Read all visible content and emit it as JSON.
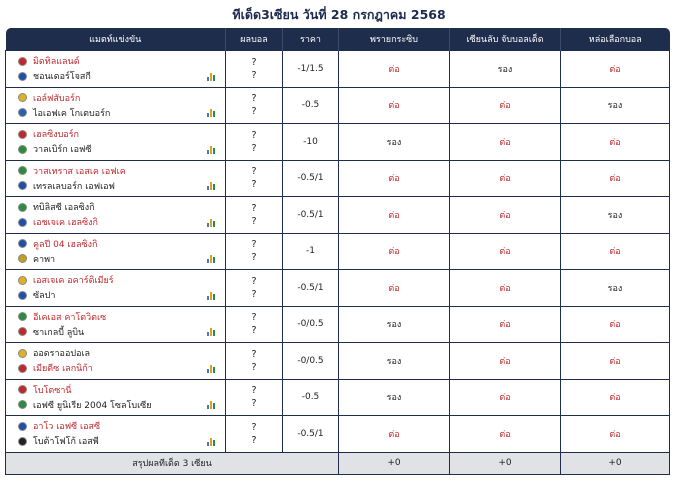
{
  "title": "ทีเด็ด3เซียน วันที่ 28 กรกฎาคม 2568",
  "headers": {
    "match": "แมตท์แข่งขัน",
    "result": "ผลบอล",
    "odds": "ราคา",
    "tipster1": "พรายกระซิบ",
    "tipster2": "เซียนลับ จับบอลเด็ด",
    "tipster3": "หล่อเลือกบอล"
  },
  "colors": {
    "header_bg": "#1f2d4d",
    "fav_text": "#c0282d",
    "footer_bg": "#e1e2e6"
  },
  "rows": [
    {
      "home": "มิดทิลแลนด์",
      "away": "ชอนเดอร์โจสกี",
      "fav": "home",
      "score_home": "?",
      "score_away": "?",
      "odds": "-1/1.5",
      "t1": "ต่อ",
      "t2": "รอง",
      "t3": "ต่อ",
      "home_logo": "#c0282d",
      "away_logo": "#1f4fa8"
    },
    {
      "home": "เอล์ฟสับอร์ก",
      "away": "ไอเอฟเค โกเตบอร์ก",
      "fav": "home",
      "score_home": "?",
      "score_away": "?",
      "odds": "-0.5",
      "t1": "ต่อ",
      "t2": "ต่อ",
      "t3": "รอง",
      "home_logo": "#e0b020",
      "away_logo": "#2a5fb0"
    },
    {
      "home": "เฮลซิงบอร์ก",
      "away": "วาลเบิร์ก เอฟซี",
      "fav": "home",
      "score_home": "?",
      "score_away": "?",
      "odds": "-10",
      "t1": "รอง",
      "t2": "ต่อ",
      "t3": "ต่อ",
      "home_logo": "#c0282d",
      "away_logo": "#2d8a3e"
    },
    {
      "home": "วาสเทราส เอสเค เอฟเค",
      "away": "เทรลเลบอร์ก เอฟเอฟ",
      "fav": "home",
      "score_home": "?",
      "score_away": "?",
      "odds": "-0.5/1",
      "t1": "ต่อ",
      "t2": "ต่อ",
      "t3": "ต่อ",
      "home_logo": "#2d8a3e",
      "away_logo": "#1f4fa8"
    },
    {
      "home": "ทบิลิสซี เอลซิงกิ",
      "away": "เอชเจเค เฮลซิงกิ",
      "fav": "away",
      "score_home": "?",
      "score_away": "?",
      "odds": "-0.5/1",
      "t1": "ต่อ",
      "t2": "ต่อ",
      "t3": "รอง",
      "home_logo": "#2d8a3e",
      "away_logo": "#1f4fa8"
    },
    {
      "home": "คูลปี 04 เฮลซิงกิ",
      "away": "คาพา",
      "fav": "home",
      "score_home": "?",
      "score_away": "?",
      "odds": "-1",
      "t1": "ต่อ",
      "t2": "ต่อ",
      "t3": "ต่อ",
      "home_logo": "#1f4fa8",
      "away_logo": "#c0a020"
    },
    {
      "home": "เอสเจเค อคาร์ดิเมียร์",
      "away": "ซัลปา",
      "fav": "home",
      "score_home": "?",
      "score_away": "?",
      "odds": "-0.5/1",
      "t1": "ต่อ",
      "t2": "ต่อ",
      "t3": "รอง",
      "home_logo": "#e0b020",
      "away_logo": "#1f4fa8"
    },
    {
      "home": "อีเคเอส คาโตวิตเซ",
      "away": "ซาเกลบี้ ลูบิน",
      "fav": "home",
      "score_home": "?",
      "score_away": "?",
      "odds": "-0/0.5",
      "t1": "รอง",
      "t2": "ต่อ",
      "t3": "ต่อ",
      "home_logo": "#2d8a3e",
      "away_logo": "#c0282d"
    },
    {
      "home": "ออดราออปอเล",
      "away": "เมียดีซ เลกนิก้า",
      "fav": "away",
      "score_home": "?",
      "score_away": "?",
      "odds": "-0/0.5",
      "t1": "รอง",
      "t2": "ต่อ",
      "t3": "ต่อ",
      "home_logo": "#e0b020",
      "away_logo": "#c0282d"
    },
    {
      "home": "โบโตซานี่",
      "away": "เอฟซี ยูนิเรีย 2004 โซลโบเซีย",
      "fav": "home",
      "score_home": "?",
      "score_away": "?",
      "odds": "-0.5",
      "t1": "รอง",
      "t2": "ต่อ",
      "t3": "ต่อ",
      "home_logo": "#c0282d",
      "away_logo": "#2d8a3e"
    },
    {
      "home": "อาโว เอฟซี เอสซี",
      "away": "โบต้าโฟโก้ เอสพี",
      "fav": "home",
      "score_home": "?",
      "score_away": "?",
      "odds": "-0.5/1",
      "t1": "ต่อ",
      "t2": "ต่อ",
      "t3": "ต่อ",
      "home_logo": "#1f4fa8",
      "away_logo": "#222222"
    }
  ],
  "summary": {
    "label": "สรุปผลทีเด็ด 3 เซียน",
    "t1": "+0",
    "t2": "+0",
    "t3": "+0"
  }
}
